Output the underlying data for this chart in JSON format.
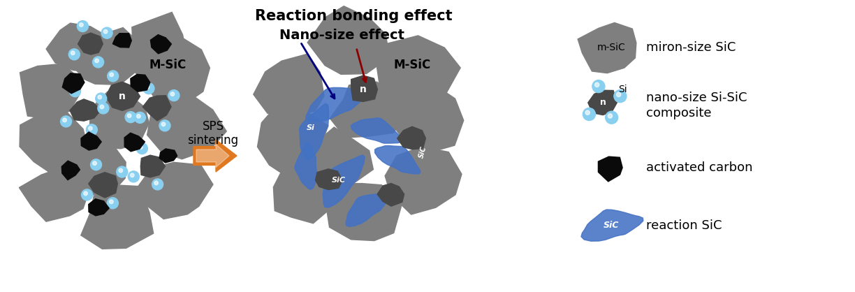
{
  "title_reaction": "Reaction bonding effect",
  "title_nano": "Nano-size effect",
  "arrow_label": "SPS\nsintering",
  "gray_color": "#7f7f7f",
  "dark_gray_color": "#484848",
  "black_color": "#0a0a0a",
  "blue_color": "#4472C4",
  "light_blue_color": "#89CFF0",
  "orange_color": "#E07820",
  "bg_color": "#ffffff",
  "m_sic_label": "M-SiC",
  "n_label": "n",
  "si_label": "Si",
  "sic_label": "SiC",
  "msic_legend": "m-SiC",
  "legend1": "miron-size SiC",
  "legend2a": "nano-size Si-SiC",
  "legend2b": "composite",
  "legend3": "activated carbon",
  "legend4": "reaction SiC"
}
